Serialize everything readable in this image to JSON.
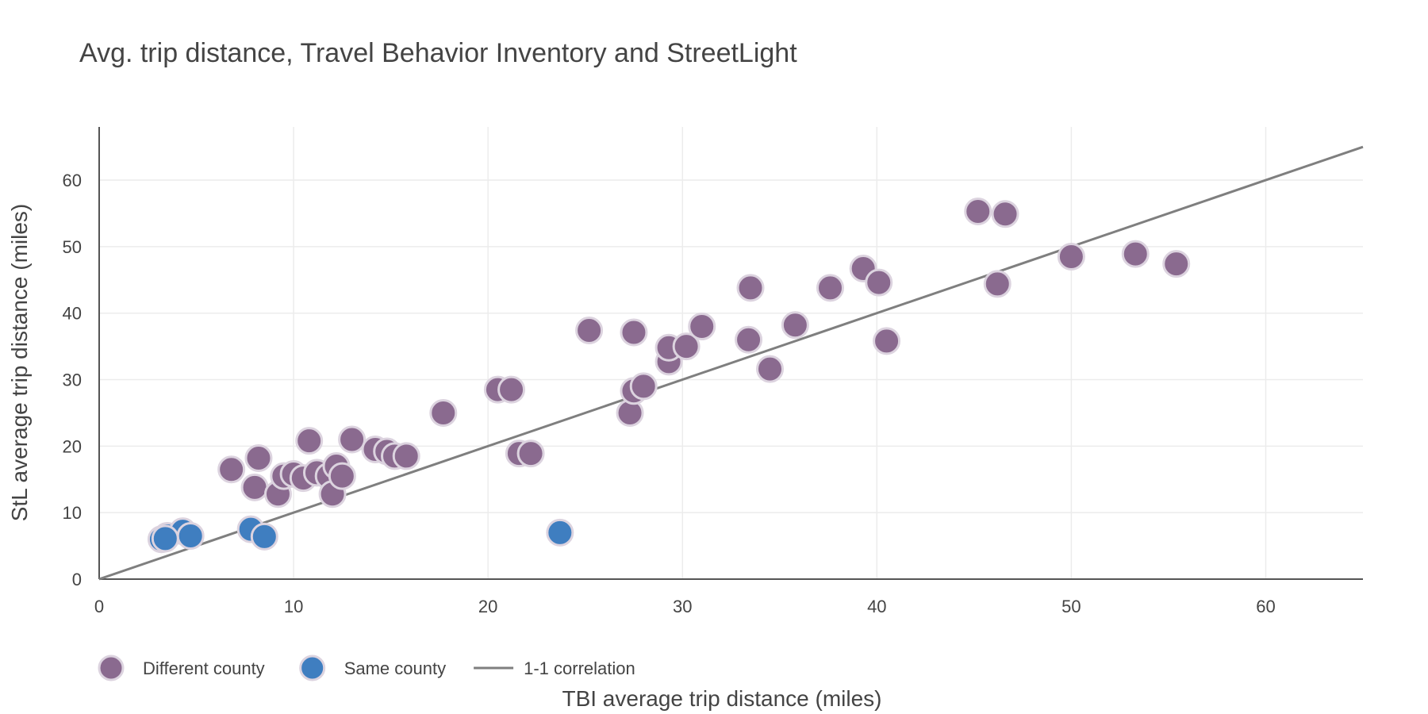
{
  "chart_data": {
    "type": "scatter",
    "title": "Avg. trip distance, Travel Behavior Inventory and StreetLight",
    "xlabel": "TBI average trip distance (miles)",
    "ylabel": "StL average trip distance (miles)",
    "xlim": [
      0,
      65
    ],
    "ylim": [
      0,
      68
    ],
    "x_ticks": [
      0,
      10,
      20,
      30,
      40,
      50,
      60
    ],
    "y_ticks": [
      0,
      10,
      20,
      30,
      40,
      50,
      60
    ],
    "grid": true,
    "legend_position": "bottom-left",
    "series": [
      {
        "name": "Different county",
        "color": "#8a6a8f",
        "kind": "points",
        "points": [
          [
            6.8,
            16.5
          ],
          [
            8.0,
            13.8
          ],
          [
            8.2,
            18.2
          ],
          [
            9.2,
            12.8
          ],
          [
            9.5,
            15.5
          ],
          [
            10.0,
            15.8
          ],
          [
            10.5,
            15.2
          ],
          [
            10.8,
            20.8
          ],
          [
            11.2,
            16.0
          ],
          [
            11.8,
            15.5
          ],
          [
            12.0,
            12.8
          ],
          [
            12.2,
            17.0
          ],
          [
            12.5,
            15.5
          ],
          [
            13.0,
            21.0
          ],
          [
            14.2,
            19.5
          ],
          [
            14.8,
            19.2
          ],
          [
            15.2,
            18.5
          ],
          [
            15.8,
            18.5
          ],
          [
            17.7,
            25.0
          ],
          [
            20.5,
            28.5
          ],
          [
            21.2,
            28.5
          ],
          [
            21.6,
            18.9
          ],
          [
            22.2,
            18.9
          ],
          [
            25.2,
            37.4
          ],
          [
            27.3,
            25.0
          ],
          [
            27.5,
            28.3
          ],
          [
            27.5,
            37.1
          ],
          [
            28.0,
            29.0
          ],
          [
            29.3,
            32.7
          ],
          [
            29.3,
            34.8
          ],
          [
            30.2,
            35.0
          ],
          [
            31.0,
            38.0
          ],
          [
            33.4,
            36.0
          ],
          [
            33.5,
            43.8
          ],
          [
            34.5,
            31.6
          ],
          [
            35.8,
            38.2
          ],
          [
            37.6,
            43.8
          ],
          [
            39.3,
            46.7
          ],
          [
            40.1,
            44.6
          ],
          [
            40.5,
            35.8
          ],
          [
            45.2,
            55.3
          ],
          [
            46.2,
            44.4
          ],
          [
            46.6,
            54.9
          ],
          [
            50.0,
            48.5
          ],
          [
            53.3,
            48.9
          ],
          [
            55.4,
            47.4
          ]
        ]
      },
      {
        "name": "Same county",
        "color": "#3f7ec0",
        "kind": "points",
        "points": [
          [
            3.2,
            6.0
          ],
          [
            3.5,
            6.5
          ],
          [
            4.3,
            7.2
          ],
          [
            4.7,
            6.5
          ],
          [
            7.8,
            7.5
          ],
          [
            8.5,
            6.4
          ],
          [
            3.4,
            6.1
          ],
          [
            23.7,
            7.0
          ]
        ]
      },
      {
        "name": "1-1 correlation",
        "color": "#7f7f7f",
        "kind": "line",
        "points": [
          [
            0,
            0
          ],
          [
            65,
            65
          ]
        ]
      }
    ]
  }
}
